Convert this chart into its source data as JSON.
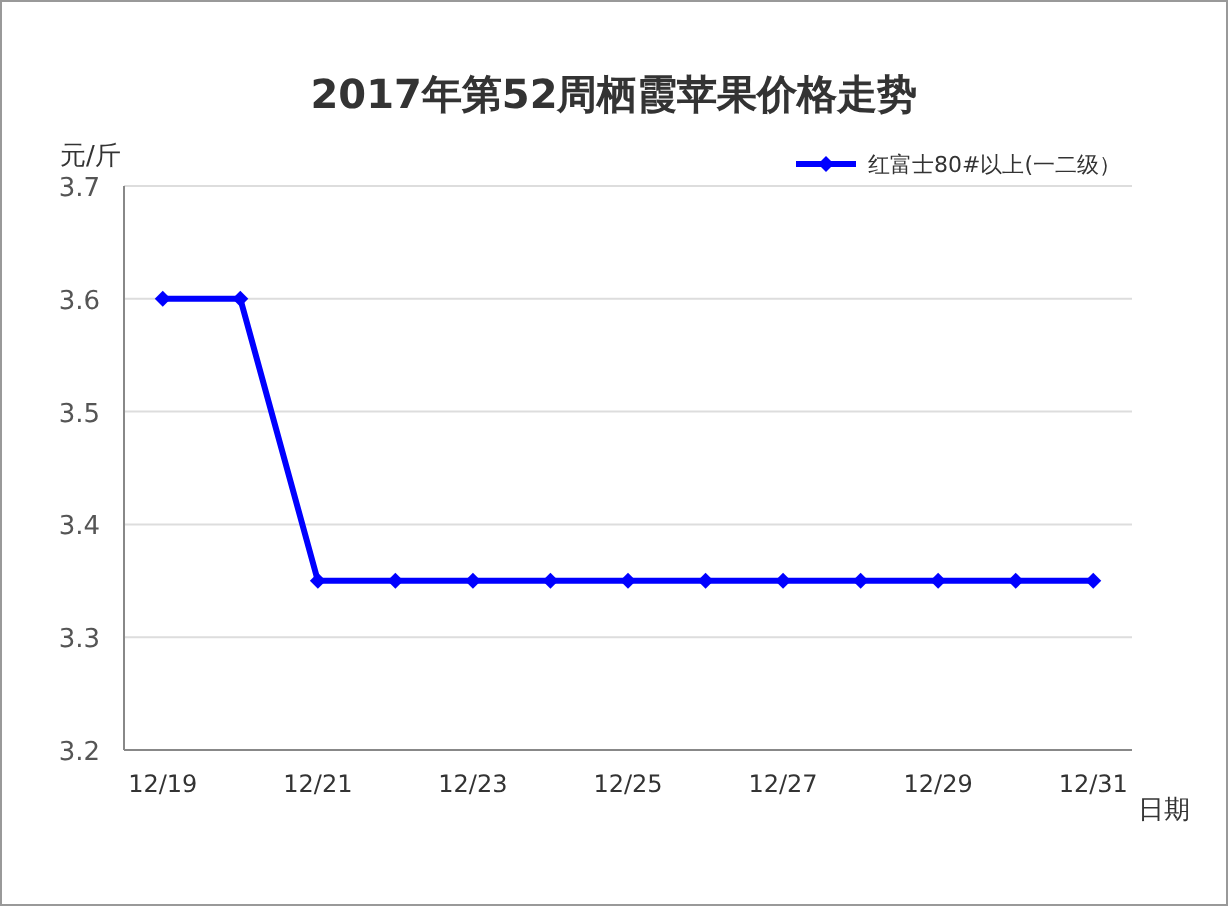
{
  "chart_data": {
    "type": "line",
    "title": "2017年第52周栖霞苹果价格走势",
    "xlabel": "日期",
    "ylabel": "元/斤",
    "categories": [
      "12/19",
      null,
      "12/21",
      null,
      "12/23",
      null,
      "12/25",
      null,
      "12/27",
      null,
      "12/29",
      null,
      "12/31"
    ],
    "series": [
      {
        "name": "红富士80#以上(一二级）",
        "color": "#0000ff",
        "values": [
          3.6,
          3.6,
          3.35,
          3.35,
          3.35,
          3.35,
          3.35,
          3.35,
          3.35,
          3.35,
          3.35,
          3.35,
          3.35
        ]
      }
    ],
    "ylim": [
      3.2,
      3.7
    ],
    "yticks": [
      3.2,
      3.3,
      3.4,
      3.5,
      3.6,
      3.7
    ],
    "grid": "y",
    "legend": "top right",
    "marker": "diamond",
    "line_style": "solid"
  }
}
